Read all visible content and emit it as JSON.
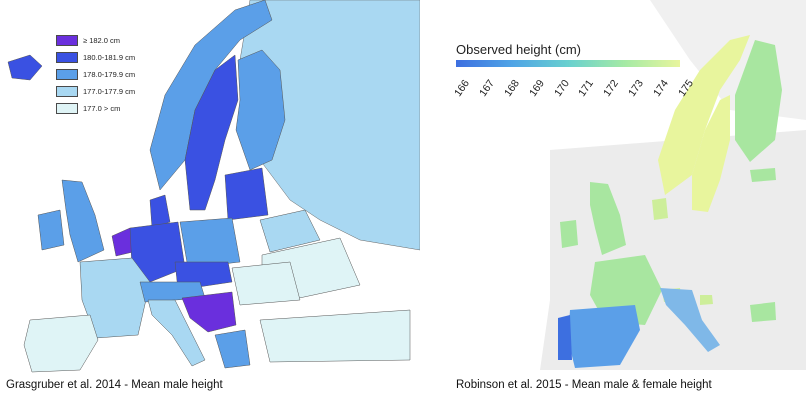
{
  "left_map": {
    "caption": "Grasgruber et al. 2014 - Mean male height",
    "legend": [
      {
        "label": "≥ 182.0 cm",
        "color": "#6a2fdd"
      },
      {
        "label": "180.0-181.9 cm",
        "color": "#3a51e2"
      },
      {
        "label": "178.0-179.9 cm",
        "color": "#5b9fe8"
      },
      {
        "label": "177.0-177.9 cm",
        "color": "#a9d8f2"
      },
      {
        "label": "177.0 > cm",
        "color": "#dff4f6"
      }
    ]
  },
  "right_map": {
    "caption": "Robinson  et al. 2015 - Mean male & female height",
    "colorbar_title": "Observed height (cm)",
    "colorbar_colors": [
      "#3d6fe0",
      "#4fa4e6",
      "#68d0cf",
      "#a4eaa5",
      "#e8f59d"
    ],
    "ticks": [
      "166",
      "167",
      "168",
      "169",
      "170",
      "171",
      "172",
      "173",
      "174",
      "175"
    ]
  },
  "colors": {
    "violet": "#6a2fdd",
    "blue": "#3a51e2",
    "mid": "#5b9fe8",
    "light": "#a9d8f2",
    "pale": "#dff4f6",
    "grey": "#ececec",
    "green": "#a8e6a0",
    "lime": "#cdee9a",
    "yellow": "#e8f59d",
    "teal": "#7fd6c2"
  }
}
